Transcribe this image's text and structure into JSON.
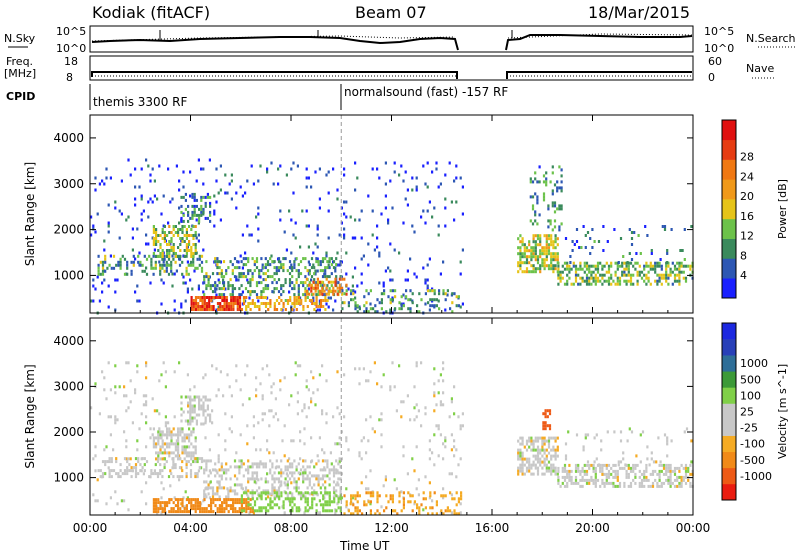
{
  "header": {
    "site": "Kodiak (fitACF)",
    "beam": "Beam 07",
    "date": "18/Mar/2015"
  },
  "strip": {
    "nsky_label": "N.Sky",
    "nsky_ticks": [
      "10^5",
      "10^0"
    ],
    "nsearch_label": "N.Search",
    "nsearch_ticks": [
      "10^5",
      "10^0"
    ],
    "freq_label_line1": "Freq.",
    "freq_label_line2": "[MHz]",
    "freq_ticks": [
      "18",
      "8"
    ],
    "nave_label": "Nave",
    "nave_ticks": [
      "60",
      "0"
    ],
    "cpid_label": "CPID",
    "cpid_segments": [
      "themis 3300 RF",
      "normalsound (fast) -157 RF"
    ]
  },
  "colors": {
    "power": [
      "#1a20ff",
      "#2d57b3",
      "#3a8a5c",
      "#6cc24a",
      "#e6c419",
      "#f0991a",
      "#f07812",
      "#e63c12",
      "#e01010"
    ],
    "velocity": [
      "#ea1c10",
      "#ee5a16",
      "#f18a18",
      "#f5ab24",
      "#c8c8c8",
      "#c8c8c8",
      "#80d048",
      "#3c9a38",
      "#2e6e98",
      "#2840b8",
      "#1c28e0"
    ]
  },
  "chart_data": [
    {
      "type": "heatmap",
      "quantity": "Power",
      "xlabel": "Time UT",
      "ylabel": "Slant Range [km]",
      "xlim": [
        0,
        24
      ],
      "ylim": [
        180,
        4500
      ],
      "x_ticks": [
        "00:00",
        "04:00",
        "08:00",
        "12:00",
        "16:00",
        "20:00",
        "00:00"
      ],
      "y_ticks": [
        "1000",
        "2000",
        "3000",
        "4000"
      ],
      "colorbar_label": "Power [dB]",
      "colorbar_ticks": [
        "4",
        "8",
        "12",
        "16",
        "20",
        "24",
        "28"
      ],
      "mode_change_hour": 10,
      "data_gap_hours": [
        14.8,
        16.9
      ],
      "regions": [
        {
          "t": [
            0.0,
            14.8
          ],
          "range": [
            200,
            3550
          ],
          "value": 3,
          "density": 0.05
        },
        {
          "t": [
            0.3,
            4.5
          ],
          "range": [
            1000,
            1450
          ],
          "value": 9,
          "density": 0.35
        },
        {
          "t": [
            2.5,
            4.2
          ],
          "range": [
            1400,
            2100
          ],
          "value": 12,
          "density": 0.55
        },
        {
          "t": [
            3.6,
            4.8
          ],
          "range": [
            2200,
            2800
          ],
          "value": 7,
          "density": 0.4
        },
        {
          "t": [
            4.5,
            10.0
          ],
          "range": [
            600,
            1400
          ],
          "value": 9,
          "density": 0.35
        },
        {
          "t": [
            4.0,
            6.0
          ],
          "range": [
            250,
            550
          ],
          "value": 25,
          "density": 0.8
        },
        {
          "t": [
            6.0,
            9.5
          ],
          "range": [
            250,
            550
          ],
          "value": 18,
          "density": 0.45
        },
        {
          "t": [
            8.5,
            10.2
          ],
          "range": [
            600,
            950
          ],
          "value": 20,
          "density": 0.5
        },
        {
          "t": [
            10.0,
            14.8
          ],
          "range": [
            200,
            700
          ],
          "value": 9,
          "density": 0.25
        },
        {
          "t": [
            17.0,
            18.6
          ],
          "range": [
            1100,
            1900
          ],
          "value": 13,
          "density": 0.6
        },
        {
          "t": [
            18.6,
            24.0
          ],
          "range": [
            800,
            1300
          ],
          "value": 11,
          "density": 0.5
        },
        {
          "t": [
            17.5,
            18.8
          ],
          "range": [
            2000,
            3400
          ],
          "value": 8,
          "density": 0.2
        },
        {
          "t": [
            18.9,
            24.0
          ],
          "range": [
            1300,
            2100
          ],
          "value": 6,
          "density": 0.07
        }
      ]
    },
    {
      "type": "heatmap",
      "quantity": "Velocity",
      "xlabel": "Time UT",
      "ylabel": "Slant Range [km]",
      "xlim": [
        0,
        24
      ],
      "ylim": [
        180,
        4500
      ],
      "x_ticks": [
        "00:00",
        "04:00",
        "08:00",
        "12:00",
        "16:00",
        "20:00",
        "00:00"
      ],
      "y_ticks": [
        "1000",
        "2000",
        "3000",
        "4000"
      ],
      "colorbar_label": "Velocity [m s^-1]",
      "colorbar_ticks": [
        "-1000",
        "-500",
        "-100",
        "-25",
        "25",
        "100",
        "500",
        "1000"
      ],
      "mode_change_hour": 10,
      "data_gap_hours": [
        14.8,
        16.9
      ],
      "regions": [
        {
          "t": [
            0.0,
            14.8
          ],
          "range": [
            200,
            3550
          ],
          "value": 0,
          "density": 0.05
        },
        {
          "t": [
            0.3,
            4.5
          ],
          "range": [
            1000,
            1450
          ],
          "value": 0,
          "density": 0.35
        },
        {
          "t": [
            2.5,
            4.2
          ],
          "range": [
            1400,
            2100
          ],
          "value": 0,
          "density": 0.55
        },
        {
          "t": [
            3.6,
            4.8
          ],
          "range": [
            2200,
            2800
          ],
          "value": 0,
          "density": 0.4
        },
        {
          "t": [
            4.5,
            10.0
          ],
          "range": [
            600,
            1400
          ],
          "value": 0,
          "density": 0.35
        },
        {
          "t": [
            2.5,
            6.5
          ],
          "range": [
            250,
            550
          ],
          "value": -150,
          "density": 0.7
        },
        {
          "t": [
            6.0,
            10.0
          ],
          "range": [
            250,
            700
          ],
          "value": 60,
          "density": 0.45
        },
        {
          "t": [
            10.0,
            14.8
          ],
          "range": [
            200,
            700
          ],
          "value": -80,
          "density": 0.25
        },
        {
          "t": [
            17.0,
            18.6
          ],
          "range": [
            1100,
            1900
          ],
          "value": 0,
          "density": 0.6
        },
        {
          "t": [
            18.6,
            24.0
          ],
          "range": [
            800,
            1300
          ],
          "value": 0,
          "density": 0.5
        },
        {
          "t": [
            18.0,
            18.3
          ],
          "range": [
            2100,
            2500
          ],
          "value": -800,
          "density": 0.6
        },
        {
          "t": [
            18.9,
            24.0
          ],
          "range": [
            1300,
            2100
          ],
          "value": 0,
          "density": 0.07
        }
      ]
    }
  ]
}
